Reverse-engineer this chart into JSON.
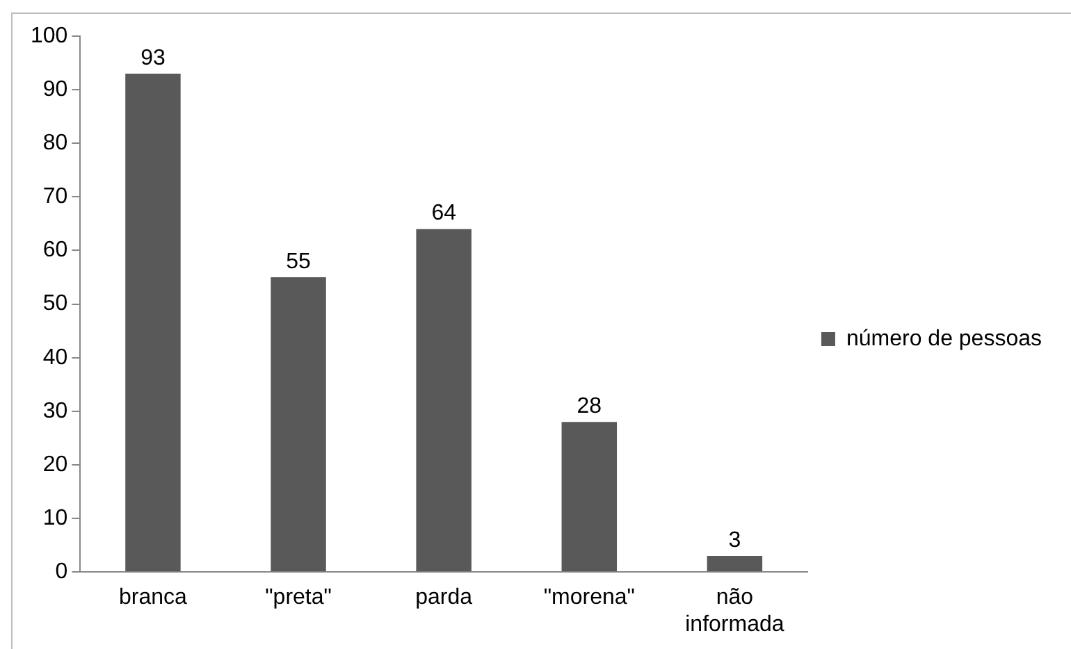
{
  "chart_data": {
    "type": "bar",
    "categories": [
      "branca",
      "\"preta\"",
      "parda",
      "\"morena\"",
      "não informada"
    ],
    "series": [
      {
        "name": "número de pessoas",
        "color": "#595959",
        "values": [
          93,
          55,
          64,
          28,
          3
        ]
      }
    ],
    "ylim": [
      0,
      100
    ],
    "yticks": [
      0,
      10,
      20,
      30,
      40,
      50,
      60,
      70,
      80,
      90,
      100
    ],
    "grid": false,
    "legend": "right",
    "data_labels": true
  }
}
